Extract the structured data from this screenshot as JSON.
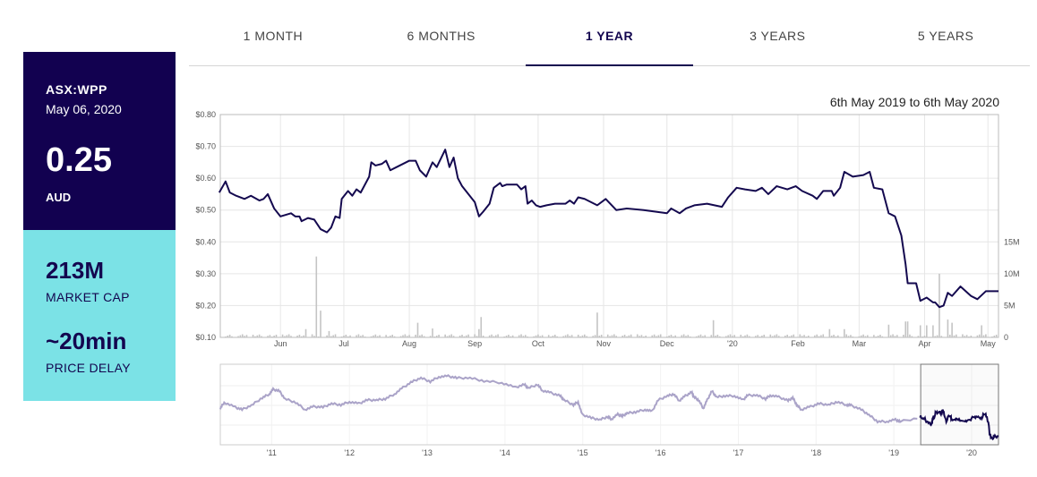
{
  "tabs": [
    {
      "label": "1 MONTH",
      "active": false
    },
    {
      "label": "6 MONTHS",
      "active": false
    },
    {
      "label": "1 YEAR",
      "active": true
    },
    {
      "label": "3 YEARS",
      "active": false
    },
    {
      "label": "5 YEARS",
      "active": false
    }
  ],
  "quote": {
    "ticker": "ASX:WPP",
    "date": "May 06, 2020",
    "price": "0.25",
    "currency": "AUD",
    "market_cap_value": "213M",
    "market_cap_label": "MARKET CAP",
    "delay_value": "~20min",
    "delay_label": "PRICE DELAY"
  },
  "colors": {
    "dark": "#120150",
    "teal": "#7be2e6",
    "line": "#14094f",
    "nav_line": "#aaa3c8",
    "volume": "#c4c4c4"
  },
  "chart_data": [
    {
      "type": "line",
      "title": "6th May 2019 to 6th May 2020",
      "x_unit": "days since 6 May 2019",
      "xlim": [
        -2.5,
        366
      ],
      "ylim": [
        0.1,
        0.8
      ],
      "y_ticks": [
        "$0.80",
        "$0.70",
        "$0.60",
        "$0.50",
        "$0.40",
        "$0.30",
        "$0.20",
        "$0.10"
      ],
      "y_tick_values": [
        0.8,
        0.7,
        0.6,
        0.5,
        0.4,
        0.3,
        0.2,
        0.1
      ],
      "x_ticks": [
        {
          "label": "Jun",
          "day": 26
        },
        {
          "label": "Jul",
          "day": 56
        },
        {
          "label": "Aug",
          "day": 87
        },
        {
          "label": "Sep",
          "day": 118
        },
        {
          "label": "Oct",
          "day": 148
        },
        {
          "label": "Nov",
          "day": 179
        },
        {
          "label": "Dec",
          "day": 209
        },
        {
          "label": "'20",
          "day": 240
        },
        {
          "label": "Feb",
          "day": 271
        },
        {
          "label": "Mar",
          "day": 300
        },
        {
          "label": "Apr",
          "day": 331
        },
        {
          "label": "May",
          "day": 361
        }
      ],
      "price": [
        [
          -3,
          0.555
        ],
        [
          0,
          0.59
        ],
        [
          2,
          0.555
        ],
        [
          5,
          0.545
        ],
        [
          9,
          0.535
        ],
        [
          12,
          0.545
        ],
        [
          16,
          0.53
        ],
        [
          18,
          0.535
        ],
        [
          20,
          0.55
        ],
        [
          23,
          0.505
        ],
        [
          26,
          0.48
        ],
        [
          31,
          0.49
        ],
        [
          33,
          0.48
        ],
        [
          35,
          0.48
        ],
        [
          36,
          0.465
        ],
        [
          39,
          0.475
        ],
        [
          42,
          0.47
        ],
        [
          45,
          0.44
        ],
        [
          48,
          0.43
        ],
        [
          50,
          0.445
        ],
        [
          52,
          0.48
        ],
        [
          54,
          0.475
        ],
        [
          55,
          0.535
        ],
        [
          58,
          0.56
        ],
        [
          60,
          0.545
        ],
        [
          62,
          0.565
        ],
        [
          64,
          0.555
        ],
        [
          68,
          0.605
        ],
        [
          69,
          0.65
        ],
        [
          71,
          0.64
        ],
        [
          74,
          0.645
        ],
        [
          76,
          0.655
        ],
        [
          78,
          0.625
        ],
        [
          81,
          0.635
        ],
        [
          87,
          0.655
        ],
        [
          90,
          0.655
        ],
        [
          92,
          0.625
        ],
        [
          95,
          0.605
        ],
        [
          96,
          0.62
        ],
        [
          98,
          0.65
        ],
        [
          100,
          0.635
        ],
        [
          104,
          0.69
        ],
        [
          106,
          0.635
        ],
        [
          108,
          0.665
        ],
        [
          110,
          0.6
        ],
        [
          112,
          0.575
        ],
        [
          118,
          0.525
        ],
        [
          120,
          0.48
        ],
        [
          122,
          0.495
        ],
        [
          125,
          0.52
        ],
        [
          127,
          0.57
        ],
        [
          130,
          0.585
        ],
        [
          131,
          0.575
        ],
        [
          133,
          0.58
        ],
        [
          138,
          0.58
        ],
        [
          140,
          0.565
        ],
        [
          142,
          0.575
        ],
        [
          143,
          0.52
        ],
        [
          145,
          0.53
        ],
        [
          147,
          0.515
        ],
        [
          149,
          0.51
        ],
        [
          152,
          0.515
        ],
        [
          156,
          0.52
        ],
        [
          161,
          0.52
        ],
        [
          163,
          0.53
        ],
        [
          165,
          0.52
        ],
        [
          167,
          0.54
        ],
        [
          170,
          0.535
        ],
        [
          176,
          0.515
        ],
        [
          180,
          0.535
        ],
        [
          185,
          0.5
        ],
        [
          190,
          0.505
        ],
        [
          198,
          0.5
        ],
        [
          209,
          0.49
        ],
        [
          211,
          0.505
        ],
        [
          215,
          0.49
        ],
        [
          218,
          0.505
        ],
        [
          222,
          0.515
        ],
        [
          228,
          0.52
        ],
        [
          235,
          0.51
        ],
        [
          238,
          0.54
        ],
        [
          242,
          0.57
        ],
        [
          246,
          0.565
        ],
        [
          251,
          0.56
        ],
        [
          254,
          0.57
        ],
        [
          257,
          0.55
        ],
        [
          261,
          0.575
        ],
        [
          266,
          0.565
        ],
        [
          270,
          0.575
        ],
        [
          273,
          0.56
        ],
        [
          278,
          0.545
        ],
        [
          280,
          0.535
        ],
        [
          283,
          0.56
        ],
        [
          287,
          0.56
        ],
        [
          288,
          0.545
        ],
        [
          291,
          0.57
        ],
        [
          293,
          0.62
        ],
        [
          297,
          0.605
        ],
        [
          302,
          0.61
        ],
        [
          305,
          0.62
        ],
        [
          307,
          0.57
        ],
        [
          311,
          0.565
        ],
        [
          314,
          0.49
        ],
        [
          317,
          0.48
        ],
        [
          320,
          0.42
        ],
        [
          322,
          0.33
        ],
        [
          323,
          0.27
        ],
        [
          327,
          0.27
        ],
        [
          329,
          0.215
        ],
        [
          332,
          0.225
        ],
        [
          335,
          0.21
        ],
        [
          336,
          0.21
        ],
        [
          338,
          0.195
        ],
        [
          340,
          0.2
        ],
        [
          342,
          0.24
        ],
        [
          344,
          0.23
        ],
        [
          348,
          0.26
        ],
        [
          353,
          0.23
        ],
        [
          356,
          0.22
        ],
        [
          360,
          0.245
        ],
        [
          366,
          0.245
        ]
      ],
      "volume_axis": {
        "ticks": [
          "15M",
          "10M",
          "5M",
          "0"
        ],
        "values_m": [
          15,
          10,
          5,
          0
        ]
      },
      "volume_baseline_m": 0.35,
      "volume_m": [
        [
          38,
          1.3
        ],
        [
          39,
          1.3
        ],
        [
          43,
          12.7
        ],
        [
          45,
          4.2
        ],
        [
          49,
          1.0
        ],
        [
          91,
          2.3
        ],
        [
          98,
          1.4
        ],
        [
          103,
          3.9
        ],
        [
          110,
          1.4
        ],
        [
          120,
          1.3
        ],
        [
          121,
          3.2
        ],
        [
          123,
          5.8
        ],
        [
          176,
          3.9
        ],
        [
          222,
          1.0
        ],
        [
          228,
          2.7
        ],
        [
          231,
          2.7
        ],
        [
          235,
          2.6
        ],
        [
          286,
          1.3
        ],
        [
          293,
          1.3
        ],
        [
          299,
          1.3
        ],
        [
          314,
          2.0
        ],
        [
          322,
          2.5
        ],
        [
          323,
          2.5
        ],
        [
          329,
          1.9
        ],
        [
          332,
          1.9
        ],
        [
          335,
          1.9
        ],
        [
          338,
          10.0
        ],
        [
          341,
          3.2
        ],
        [
          342,
          2.8
        ],
        [
          344,
          2.3
        ],
        [
          358,
          1.9
        ]
      ]
    },
    {
      "type": "line",
      "title": "navigator",
      "xlim": [
        2010.34,
        2020.345
      ],
      "ylim": [
        0.1,
        1.45
      ],
      "x_ticks": [
        "'11",
        "'12",
        "'13",
        "'14",
        "'15",
        "'16",
        "'17",
        "'18",
        "'19",
        "'20"
      ],
      "x_tick_values": [
        2011,
        2012,
        2013,
        2014,
        2015,
        2016,
        2017,
        2018,
        2019,
        2020
      ],
      "selection_start": 2019.345,
      "series": [
        [
          2010.34,
          0.71
        ],
        [
          2010.39,
          0.81
        ],
        [
          2010.53,
          0.73
        ],
        [
          2010.62,
          0.69
        ],
        [
          2010.74,
          0.76
        ],
        [
          2010.88,
          0.89
        ],
        [
          2010.97,
          0.95
        ],
        [
          2011.02,
          1.03
        ],
        [
          2011.1,
          1.0
        ],
        [
          2011.17,
          0.87
        ],
        [
          2011.31,
          0.81
        ],
        [
          2011.43,
          0.69
        ],
        [
          2011.54,
          0.74
        ],
        [
          2011.66,
          0.73
        ],
        [
          2011.77,
          0.79
        ],
        [
          2011.89,
          0.77
        ],
        [
          2012.0,
          0.82
        ],
        [
          2012.12,
          0.79
        ],
        [
          2012.23,
          0.85
        ],
        [
          2012.35,
          0.85
        ],
        [
          2012.46,
          0.87
        ],
        [
          2012.58,
          0.95
        ],
        [
          2012.69,
          1.06
        ],
        [
          2012.81,
          1.16
        ],
        [
          2012.92,
          1.22
        ],
        [
          2013.04,
          1.16
        ],
        [
          2013.15,
          1.24
        ],
        [
          2013.27,
          1.25
        ],
        [
          2013.38,
          1.22
        ],
        [
          2013.55,
          1.22
        ],
        [
          2013.73,
          1.17
        ],
        [
          2013.96,
          1.14
        ],
        [
          2014.13,
          1.06
        ],
        [
          2014.25,
          1.11
        ],
        [
          2014.3,
          1.05
        ],
        [
          2014.42,
          1.11
        ],
        [
          2014.48,
          1.01
        ],
        [
          2014.59,
          0.97
        ],
        [
          2014.71,
          0.92
        ],
        [
          2014.76,
          0.85
        ],
        [
          2014.88,
          0.77
        ],
        [
          2014.94,
          0.82
        ],
        [
          2014.99,
          0.61
        ],
        [
          2015.11,
          0.55
        ],
        [
          2015.22,
          0.52
        ],
        [
          2015.32,
          0.57
        ],
        [
          2015.37,
          0.53
        ],
        [
          2015.45,
          0.61
        ],
        [
          2015.51,
          0.58
        ],
        [
          2015.57,
          0.63
        ],
        [
          2015.68,
          0.65
        ],
        [
          2015.8,
          0.69
        ],
        [
          2015.89,
          0.66
        ],
        [
          2015.97,
          0.85
        ],
        [
          2016.09,
          0.92
        ],
        [
          2016.17,
          0.95
        ],
        [
          2016.24,
          0.84
        ],
        [
          2016.32,
          0.92
        ],
        [
          2016.4,
          0.98
        ],
        [
          2016.43,
          0.9
        ],
        [
          2016.49,
          0.85
        ],
        [
          2016.55,
          0.71
        ],
        [
          2016.6,
          0.85
        ],
        [
          2016.66,
          1.0
        ],
        [
          2016.72,
          0.9
        ],
        [
          2016.83,
          0.92
        ],
        [
          2016.95,
          0.92
        ],
        [
          2017.06,
          0.85
        ],
        [
          2017.12,
          0.93
        ],
        [
          2017.24,
          0.93
        ],
        [
          2017.35,
          0.87
        ],
        [
          2017.41,
          0.93
        ],
        [
          2017.52,
          0.9
        ],
        [
          2017.64,
          0.84
        ],
        [
          2017.7,
          0.89
        ],
        [
          2017.75,
          0.77
        ],
        [
          2017.81,
          0.69
        ],
        [
          2017.93,
          0.74
        ],
        [
          2018.04,
          0.79
        ],
        [
          2018.16,
          0.77
        ],
        [
          2018.27,
          0.82
        ],
        [
          2018.39,
          0.77
        ],
        [
          2018.45,
          0.76
        ],
        [
          2018.58,
          0.69
        ],
        [
          2018.68,
          0.6
        ],
        [
          2018.79,
          0.49
        ],
        [
          2018.91,
          0.49
        ],
        [
          2019.02,
          0.52
        ],
        [
          2019.08,
          0.49
        ],
        [
          2019.345,
          0.555
        ]
      ]
    }
  ]
}
